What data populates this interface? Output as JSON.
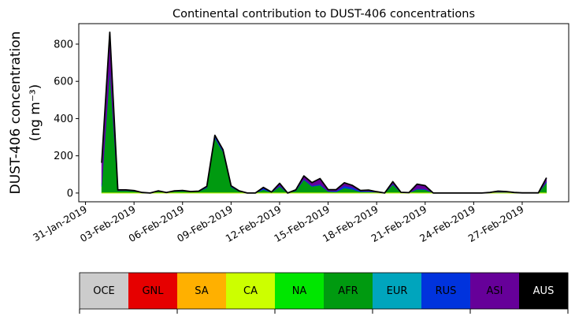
{
  "chart_data": {
    "type": "area",
    "stacked": true,
    "title": "Continental contribution to DUST-406 concentrations",
    "ylabel_line1": "DUST-406 concentration",
    "ylabel_line2": "(ng m⁻³)",
    "xlabel": "",
    "xlim": [
      "2019-01-30 14:00",
      "2019-03-01 21:00"
    ],
    "ylim": [
      -47,
      910
    ],
    "grid": false,
    "yticks": [
      0,
      200,
      400,
      600,
      800
    ],
    "xticks": [
      "31-Jan-2019",
      "03-Feb-2019",
      "06-Feb-2019",
      "09-Feb-2019",
      "12-Feb-2019",
      "15-Feb-2019",
      "18-Feb-2019",
      "21-Feb-2019",
      "24-Feb-2019",
      "27-Feb-2019"
    ],
    "xtick_dates": [
      "2019-01-31",
      "2019-02-03",
      "2019-02-06",
      "2019-02-09",
      "2019-02-12",
      "2019-02-15",
      "2019-02-18",
      "2019-02-21",
      "2019-02-24",
      "2019-02-27"
    ],
    "x": [
      "2019-02-01 00:00",
      "2019-02-01 12:00",
      "2019-02-02 00:00",
      "2019-02-02 12:00",
      "2019-02-03 00:00",
      "2019-02-03 12:00",
      "2019-02-04 00:00",
      "2019-02-04 12:00",
      "2019-02-05 00:00",
      "2019-02-05 12:00",
      "2019-02-06 00:00",
      "2019-02-06 12:00",
      "2019-02-07 00:00",
      "2019-02-07 12:00",
      "2019-02-08 00:00",
      "2019-02-08 12:00",
      "2019-02-09 00:00",
      "2019-02-09 12:00",
      "2019-02-10 00:00",
      "2019-02-10 12:00",
      "2019-02-11 00:00",
      "2019-02-11 12:00",
      "2019-02-12 00:00",
      "2019-02-12 12:00",
      "2019-02-13 00:00",
      "2019-02-13 12:00",
      "2019-02-14 00:00",
      "2019-02-14 12:00",
      "2019-02-15 00:00",
      "2019-02-15 12:00",
      "2019-02-16 00:00",
      "2019-02-16 12:00",
      "2019-02-17 00:00",
      "2019-02-17 12:00",
      "2019-02-18 00:00",
      "2019-02-18 12:00",
      "2019-02-19 00:00",
      "2019-02-19 12:00",
      "2019-02-20 00:00",
      "2019-02-20 12:00",
      "2019-02-21 00:00",
      "2019-02-21 12:00",
      "2019-02-22 00:00",
      "2019-02-22 12:00",
      "2019-02-23 00:00",
      "2019-02-23 12:00",
      "2019-02-24 00:00",
      "2019-02-24 12:00",
      "2019-02-25 00:00",
      "2019-02-25 12:00",
      "2019-02-26 00:00",
      "2019-02-26 12:00",
      "2019-02-27 00:00",
      "2019-02-27 12:00",
      "2019-02-28 00:00",
      "2019-02-28 12:00"
    ],
    "series": [
      {
        "name": "AFR",
        "color": "#009a10",
        "values": [
          35,
          655,
          13,
          13,
          10,
          2,
          0,
          9,
          2,
          9,
          11,
          6,
          8,
          28,
          295,
          220,
          32,
          9,
          0,
          0,
          18,
          3,
          35,
          0,
          12,
          71,
          35,
          42,
          8,
          6,
          27,
          20,
          6,
          7,
          3,
          0,
          45,
          2,
          1,
          20,
          18,
          0,
          0,
          0,
          0,
          0,
          0,
          0,
          1,
          4,
          3,
          1,
          0,
          0,
          0,
          56
        ]
      },
      {
        "name": "RUS",
        "color": "#0033dd",
        "values": [
          10,
          20,
          1,
          1,
          1,
          0,
          0,
          1,
          0,
          1,
          1,
          1,
          1,
          3,
          8,
          6,
          3,
          1,
          0,
          0,
          8,
          1,
          5,
          0,
          2,
          5,
          5,
          6,
          3,
          5,
          12,
          10,
          4,
          4,
          2,
          0,
          4,
          1,
          0,
          4,
          4,
          0,
          0,
          0,
          0,
          0,
          0,
          0,
          1,
          2,
          2,
          1,
          0,
          0,
          0,
          6
        ]
      },
      {
        "name": "ASI",
        "color": "#660099",
        "values": [
          117,
          189,
          3,
          3,
          2,
          1,
          0,
          2,
          1,
          2,
          2,
          1,
          1,
          5,
          7,
          7,
          4,
          2,
          0,
          0,
          4,
          1,
          12,
          0,
          3,
          16,
          16,
          30,
          7,
          7,
          16,
          11,
          4,
          5,
          2,
          0,
          12,
          1,
          1,
          24,
          18,
          0,
          0,
          0,
          0,
          0,
          0,
          0,
          1,
          4,
          3,
          1,
          1,
          1,
          1,
          20
        ]
      }
    ],
    "total_line_color": "#000000",
    "colorbar": [
      {
        "label": "OCE",
        "color": "#cccccc",
        "text_color": "#000000"
      },
      {
        "label": "GNL",
        "color": "#e60000",
        "text_color": "#000000"
      },
      {
        "label": "SA",
        "color": "#ffb000",
        "text_color": "#000000"
      },
      {
        "label": "CA",
        "color": "#ccff00",
        "text_color": "#000000"
      },
      {
        "label": "NA",
        "color": "#00e600",
        "text_color": "#000000"
      },
      {
        "label": "AFR",
        "color": "#009a10",
        "text_color": "#000000"
      },
      {
        "label": "EUR",
        "color": "#00a5bd",
        "text_color": "#000000"
      },
      {
        "label": "RUS",
        "color": "#0033dd",
        "text_color": "#000000"
      },
      {
        "label": "ASI",
        "color": "#660099",
        "text_color": "#000000"
      },
      {
        "label": "AUS",
        "color": "#000000",
        "text_color": "#ffffff"
      }
    ]
  }
}
